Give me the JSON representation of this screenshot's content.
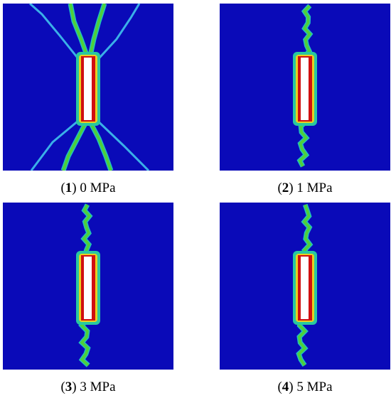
{
  "figure": {
    "panels": [
      {
        "caption_parts": [
          "(",
          "1",
          ") 0 MPa"
        ]
      },
      {
        "caption_parts": [
          "(",
          "2",
          ") 1 MPa"
        ]
      },
      {
        "caption_parts": [
          "(",
          "3",
          ") 3 MPa"
        ]
      },
      {
        "caption_parts": [
          "(",
          "4",
          ") 5 MPa"
        ]
      }
    ]
  }
}
